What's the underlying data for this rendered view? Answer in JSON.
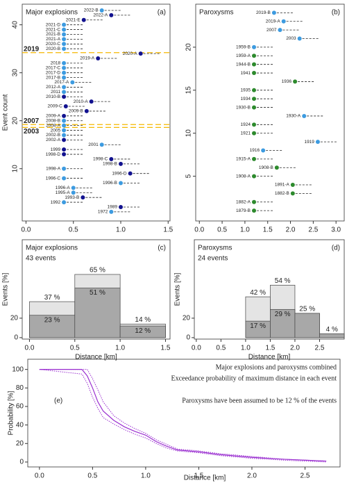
{
  "chart_data": [
    {
      "type": "scatter",
      "panel_label": "(a)",
      "title": "Major explosions",
      "y_label": "Event count",
      "point_labels": [
        "2022-B",
        "2022-A",
        "2021-E",
        "2021-D",
        "2021-C",
        "2021-B",
        "2021-A",
        "2020-C",
        "2020-B",
        "2020-A",
        "2019-A",
        "2018",
        "2017-C",
        "2017-D",
        "2017-B",
        "2017-A",
        "2012-A",
        "2011",
        "2010-B",
        "2010-A",
        "2009-C",
        "2009-B",
        "2009-A",
        "2008-B",
        "2008-A",
        "2005",
        "2002-B",
        "2002-A",
        "2001",
        "1999",
        "1998-D",
        "1998-C",
        "1998-B",
        "1998-A",
        "1996-D",
        "1996-C",
        "1996-B",
        "1996-A",
        "1995-A",
        "1993-B",
        "1992",
        "1989",
        "1972"
      ],
      "x": [
        0.8,
        0.9,
        0.61,
        0.4,
        0.4,
        0.4,
        0.4,
        0.4,
        0.4,
        1.21,
        0.76,
        0.4,
        0.4,
        0.4,
        0.4,
        0.49,
        0.4,
        0.4,
        0.4,
        0.69,
        0.42,
        0.64,
        0.4,
        0.4,
        0.4,
        0.4,
        0.4,
        0.4,
        0.8,
        0.4,
        0.4,
        0.9,
        1.0,
        0.4,
        1.1,
        0.4,
        1.0,
        0.5,
        0.5,
        0.6,
        0.4,
        1.0,
        0.9
      ],
      "values": [
        43,
        42,
        41,
        40,
        39,
        38,
        37,
        36,
        35,
        34,
        33,
        32,
        31,
        30,
        29,
        28,
        27,
        26,
        25,
        24,
        23,
        22,
        21,
        20,
        19,
        18,
        17,
        16,
        15,
        14,
        13,
        12,
        11,
        10,
        9,
        8,
        7,
        6,
        5,
        4,
        3,
        2,
        1
      ],
      "colors": [
        "#3d9be0",
        "#12128f",
        "#12128f",
        "#3d9be0",
        "#3d9be0",
        "#3d9be0",
        "#3d9be0",
        "#3d9be0",
        "#3d9be0",
        "#12128f",
        "#12128f",
        "#3d9be0",
        "#3d9be0",
        "#3d9be0",
        "#3d9be0",
        "#3d9be0",
        "#3d9be0",
        "#3d9be0",
        "#12128f",
        "#12128f",
        "#12128f",
        "#12128f",
        "#12128f",
        "#3d9be0",
        "#3d9be0",
        "#3d9be0",
        "#3d9be0",
        "#12128f",
        "#3d9be0",
        "#12128f",
        "#12128f",
        "#12128f",
        "#12128f",
        "#3d9be0",
        "#12128f",
        "#3d9be0",
        "#3d9be0",
        "#3d9be0",
        "#3d9be0",
        "#12128f",
        "#3d9be0",
        "#12128f",
        "#3d9be0"
      ],
      "xlim": [
        -0.04,
        1.52
      ],
      "xticks": [
        {
          "value": 0,
          "label": "0.0"
        },
        0.5,
        {
          "value": 1,
          "label": "1.0"
        },
        1.5
      ],
      "ylim": [
        -0.9,
        44.3
      ],
      "yticks": [
        10,
        20,
        30,
        40
      ],
      "reference_lines": [
        {
          "value": 34.2,
          "label": "2019"
        },
        {
          "value": 19.2,
          "label": "2007"
        },
        {
          "value": 18.6,
          "label": "2003"
        }
      ],
      "reference_color": "#f5b800"
    },
    {
      "type": "scatter",
      "panel_label": "(b)",
      "title": "Paroxysms",
      "point_labels": [
        "2019-B",
        "2019-A",
        "2007",
        "2003",
        "1959-B",
        "1959-A",
        "1944-B",
        "1941",
        "1936",
        "1935",
        "1934",
        "1930-B",
        "1930-A",
        "1924",
        "1921",
        "1919",
        "1916",
        "1915-A",
        "1908-B",
        "1908-A",
        "1891-A",
        "1882-B",
        "1882-A",
        "1879-B"
      ],
      "x": [
        1.64,
        1.85,
        1.77,
        2.2,
        1.2,
        1.2,
        1.2,
        1.2,
        2.1,
        1.2,
        1.2,
        1.2,
        2.3,
        1.2,
        1.2,
        2.6,
        1.4,
        1.2,
        1.7,
        1.2,
        2.05,
        2.05,
        1.2,
        1.2
      ],
      "values": [
        24,
        23,
        22,
        21,
        20,
        19,
        18,
        17,
        16,
        15,
        14,
        13,
        12,
        11,
        10,
        9,
        8,
        7,
        6,
        5,
        4,
        3,
        2,
        1
      ],
      "colors": [
        "#3d9be0",
        "#3d9be0",
        "#3d9be0",
        "#3d9be0",
        "#3d9be0",
        "#2d8a2d",
        "#2d8a2d",
        "#2d8a2d",
        "#2d8a2d",
        "#2d8a2d",
        "#2d8a2d",
        "#2d8a2d",
        "#3d9be0",
        "#2d8a2d",
        "#2d8a2d",
        "#3d9be0",
        "#3d9be0",
        "#2d8a2d",
        "#2d8a2d",
        "#2d8a2d",
        "#2d8a2d",
        "#2d8a2d",
        "#2d8a2d",
        "#2d8a2d"
      ],
      "xlim": [
        -0.08,
        3.18
      ],
      "xticks": [
        {
          "value": 0,
          "label": "0.0"
        },
        0.5,
        {
          "value": 1,
          "label": "1.0"
        },
        1.5,
        {
          "value": 2,
          "label": "2.0"
        },
        2.5,
        {
          "value": 3,
          "label": "3.0"
        }
      ],
      "ylim": [
        -0.2,
        25
      ],
      "yticks": [
        5,
        10,
        15,
        20
      ]
    },
    {
      "type": "histogram",
      "panel_label": "(c)",
      "title": "Major explosions",
      "subtitle": "43 events",
      "y_label": "Events [%]",
      "x_label": "Distance [km]",
      "bins": [
        0,
        0.5,
        1,
        1.5
      ],
      "series": [
        {
          "color": "#e4e4e4",
          "values": [
            37,
            65,
            14
          ],
          "value_labels": [
            "37 %",
            "65 %",
            "14 %"
          ]
        },
        {
          "color": "#a8a8a8",
          "values": [
            23,
            51,
            12
          ],
          "value_labels": [
            "23 %",
            "51 %",
            "12 %"
          ]
        }
      ],
      "xlim": [
        -0.08,
        1.55
      ],
      "xticks": [
        {
          "value": 0,
          "label": "0.0"
        },
        0.5,
        {
          "value": 1,
          "label": "1.0"
        },
        1.5
      ],
      "ylim": [
        -1.5,
        100.7
      ],
      "yticks": [
        0,
        20
      ]
    },
    {
      "type": "histogram",
      "panel_label": "(d)",
      "title": "Paroxysms",
      "subtitle": "24 events",
      "y_label": "Events [%]",
      "x_label": "Distance [km]",
      "bins": [
        0,
        0.5,
        1,
        1.5,
        2,
        2.5,
        3
      ],
      "series": [
        {
          "color": "#e4e4e4",
          "values": [
            0,
            0,
            42,
            54,
            25,
            4
          ],
          "value_labels": [
            null,
            null,
            "42 %",
            "54 %",
            "25 %",
            "4 %"
          ]
        },
        {
          "color": "#a8a8a8",
          "values": [
            0,
            0,
            17,
            29,
            25,
            4
          ],
          "value_labels": [
            null,
            null,
            "17 %",
            "29 %",
            null,
            null
          ]
        }
      ],
      "xlim": [
        -0.04,
        3.0
      ],
      "xticks": [
        {
          "value": 0,
          "label": "0.0"
        },
        0.5,
        {
          "value": 1,
          "label": "1.0"
        },
        1.5,
        {
          "value": 2,
          "label": "2.0"
        },
        2.5
      ],
      "ylim": [
        -1.5,
        100.7
      ],
      "yticks": [
        0,
        20
      ]
    },
    {
      "type": "line",
      "panel_label": "(e)",
      "y_label": "Probability [%]",
      "x_label": "Distance [km]",
      "annotations": [
        "Major explosions and paroxysms combined",
        "Exceedance probability of maximum distance in each event",
        "Paroxysms have been assumed to be 12 % of the events"
      ],
      "x": [
        0,
        0.4,
        0.45,
        0.5,
        0.55,
        0.6,
        0.7,
        0.8,
        0.9,
        1.0,
        1.1,
        1.2,
        1.3,
        1.5,
        1.7,
        2.0,
        2.3,
        2.5,
        2.7
      ],
      "series": [
        {
          "color": "#9a2fd0",
          "style": "solid",
          "values": [
            100,
            100,
            93,
            80,
            65,
            55,
            45,
            38,
            33,
            29,
            22,
            17,
            13,
            11,
            8,
            5,
            3,
            2,
            1
          ]
        },
        {
          "color": "#9a2fd0",
          "style": "dotted",
          "values": [
            100,
            100,
            100,
            90,
            78,
            65,
            50,
            42,
            36,
            31,
            24,
            19,
            14,
            12,
            9,
            6,
            3,
            2,
            1
          ]
        },
        {
          "color": "#9a2fd0",
          "style": "dotted",
          "values": [
            100,
            95,
            85,
            70,
            58,
            48,
            41,
            35,
            30,
            26,
            20,
            15,
            12,
            10,
            7,
            4,
            2,
            1,
            0
          ]
        }
      ],
      "xlim": [
        -0.11,
        2.83
      ],
      "xticks": [
        {
          "value": 0,
          "label": "0.0"
        },
        0.5,
        {
          "value": 1,
          "label": "1.0"
        },
        1.5,
        {
          "value": 2,
          "label": "2.0"
        },
        2.5
      ],
      "ylim": [
        -5.3,
        111
      ],
      "yticks": [
        0,
        20,
        40,
        60,
        80,
        100
      ]
    }
  ]
}
